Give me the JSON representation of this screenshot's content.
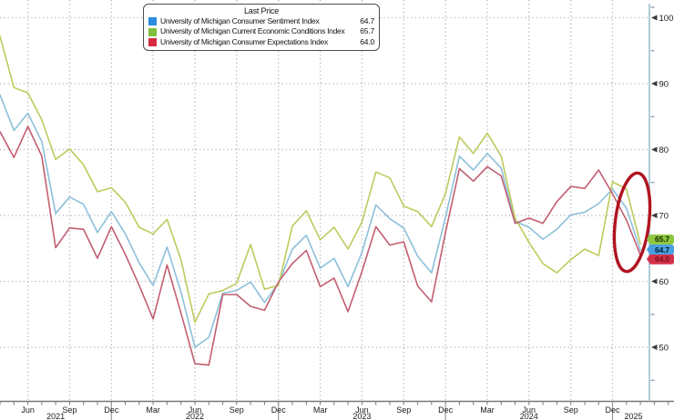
{
  "chart_data": {
    "type": "line",
    "x_start": "2021-04",
    "x_end": "2025-02",
    "frequency": "monthly",
    "grid": true,
    "legend_position": "top-inset",
    "y_axis_side": "right",
    "y_ticks": [
      100,
      90,
      80,
      70,
      60,
      50
    ],
    "y_minor_ticks": [
      95,
      85,
      75,
      65,
      55,
      45
    ],
    "y_axis_range_labeled": [
      50,
      100
    ],
    "x_tick_labels": [
      {
        "label": "Jun",
        "idx": 2
      },
      {
        "label": "Sep",
        "idx": 5
      },
      {
        "label": "Dec",
        "idx": 8
      },
      {
        "label": "Mar",
        "idx": 11
      },
      {
        "label": "Jun",
        "idx": 14
      },
      {
        "label": "Sep",
        "idx": 17
      },
      {
        "label": "Dec",
        "idx": 20
      },
      {
        "label": "Mar",
        "idx": 23
      },
      {
        "label": "Jun",
        "idx": 26
      },
      {
        "label": "Sep",
        "idx": 29
      },
      {
        "label": "Dec",
        "idx": 32
      },
      {
        "label": "Mar",
        "idx": 35
      },
      {
        "label": "Jun",
        "idx": 38
      },
      {
        "label": "Sep",
        "idx": 41
      },
      {
        "label": "Dec",
        "idx": 44
      }
    ],
    "year_labels": [
      {
        "label": "2021",
        "idx": 4
      },
      {
        "label": "2022",
        "idx": 14
      },
      {
        "label": "2023",
        "idx": 26
      },
      {
        "label": "2024",
        "idx": 38
      },
      {
        "label": "2025",
        "idx": 45.5
      }
    ],
    "year_separator_idx": [
      8,
      20,
      32,
      44
    ],
    "series": [
      {
        "name": "University of Michigan Consumer Sentiment Index",
        "slug": "sentiment",
        "line_color": "#8cc0da",
        "last": "64.7",
        "values": [
          88.3,
          82.9,
          85.5,
          81.2,
          70.3,
          72.8,
          71.7,
          67.4,
          70.6,
          67.2,
          62.8,
          59.4,
          65.2,
          58.4,
          50.0,
          51.5,
          58.2,
          58.6,
          59.9,
          56.8,
          59.7,
          64.9,
          67.0,
          62.0,
          63.5,
          59.2,
          64.4,
          71.6,
          69.5,
          68.1,
          63.8,
          61.3,
          69.7,
          79.0,
          76.9,
          79.4,
          77.2,
          69.1,
          68.2,
          66.4,
          67.9,
          70.1,
          70.5,
          71.8,
          74.0,
          71.1,
          64.7
        ]
      },
      {
        "name": "University of Michigan Current Economic Conditions Index",
        "slug": "current-conditions",
        "line_color": "#bfca5d",
        "last": "65.7",
        "values": [
          97.2,
          89.4,
          88.6,
          84.5,
          78.5,
          80.1,
          77.7,
          73.6,
          74.2,
          72.0,
          68.2,
          67.2,
          69.4,
          63.3,
          53.8,
          58.1,
          58.6,
          59.7,
          65.6,
          58.8,
          59.4,
          68.4,
          70.7,
          66.3,
          68.2,
          64.9,
          69.0,
          76.6,
          75.7,
          71.4,
          70.6,
          68.3,
          73.3,
          81.9,
          79.4,
          82.5,
          79.0,
          69.6,
          65.9,
          62.7,
          61.3,
          63.3,
          64.9,
          63.9,
          75.1,
          74.0,
          65.7
        ]
      },
      {
        "name": "University of Michigan Consumer Expectations Index",
        "slug": "expectations",
        "line_color": "#c25e71",
        "last": "64.0",
        "values": [
          82.7,
          78.8,
          83.5,
          79.0,
          65.1,
          68.1,
          67.9,
          63.5,
          68.3,
          64.1,
          59.4,
          54.3,
          62.5,
          55.2,
          47.5,
          47.3,
          58.0,
          58.0,
          56.2,
          55.6,
          59.9,
          62.7,
          64.7,
          59.2,
          60.5,
          55.4,
          61.5,
          68.3,
          65.5,
          66.0,
          59.3,
          56.9,
          67.4,
          77.1,
          75.2,
          77.4,
          76.0,
          68.8,
          69.6,
          68.8,
          72.1,
          74.4,
          74.1,
          76.9,
          73.3,
          69.3,
          64.0
        ]
      }
    ]
  },
  "legend": {
    "title": "Last Price",
    "items": [
      {
        "label": "University of Michigan Consumer Sentiment Index",
        "value": "64.7",
        "color": "#2b8ce0"
      },
      {
        "label": "University of Michigan Current Economic Conditions Index",
        "value": "65.7",
        "color": "#7fc13c"
      },
      {
        "label": "University of Michigan Consumer Expectations Index",
        "value": "64.0",
        "color": "#d52a42"
      }
    ]
  },
  "badges": [
    {
      "slug": "current-conditions",
      "value": "65.7",
      "bg": "#8dc63f",
      "fg": "#142d05"
    },
    {
      "slug": "sentiment",
      "value": "64.7",
      "bg": "#4a9fe0",
      "fg": "#041c33"
    },
    {
      "slug": "expectations",
      "value": "64.0",
      "bg": "#d5304a",
      "fg": "#7a1020"
    }
  ],
  "annotation": {
    "shape": "ellipse",
    "meaning": "highlight-of-latest-drop",
    "color": "#b01320"
  },
  "colors": {
    "grid": "#b3b3b3",
    "bottom_axis": "#787878",
    "right_axis": "#9bbfce",
    "tick_text": "#1a1a1a"
  }
}
